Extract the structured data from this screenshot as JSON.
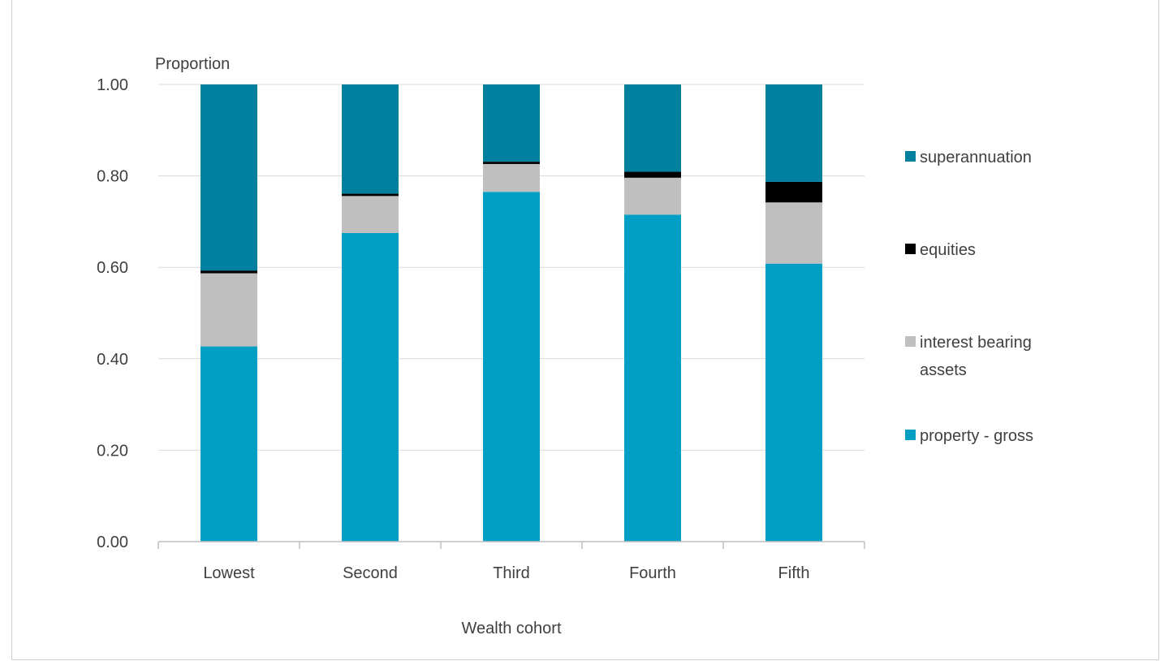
{
  "chart_data": {
    "type": "bar",
    "stacked": true,
    "ylabel": "Proportion",
    "xlabel": "Wealth cohort",
    "ylim": [
      0,
      1
    ],
    "yticks": [
      "0.00",
      "0.20",
      "0.40",
      "0.60",
      "0.80",
      "1.00"
    ],
    "grid": true,
    "legend_position": "right",
    "categories": [
      "Lowest",
      "Second",
      "Third",
      "Fourth",
      "Fifth"
    ],
    "series": [
      {
        "name": "property - gross",
        "color": "#009fc3",
        "values": [
          0.427,
          0.675,
          0.765,
          0.715,
          0.608
        ]
      },
      {
        "name": "interest bearing assets",
        "color": "#bfbfbf",
        "values": [
          0.16,
          0.081,
          0.061,
          0.081,
          0.134
        ]
      },
      {
        "name": "equities",
        "color": "#000000",
        "values": [
          0.006,
          0.005,
          0.005,
          0.013,
          0.045
        ]
      },
      {
        "name": "superannuation",
        "color": "#00809f",
        "values": [
          0.407,
          0.239,
          0.169,
          0.191,
          0.213
        ]
      }
    ],
    "legend_order": [
      "superannuation",
      "equities",
      "interest bearing assets",
      "property - gross"
    ]
  }
}
